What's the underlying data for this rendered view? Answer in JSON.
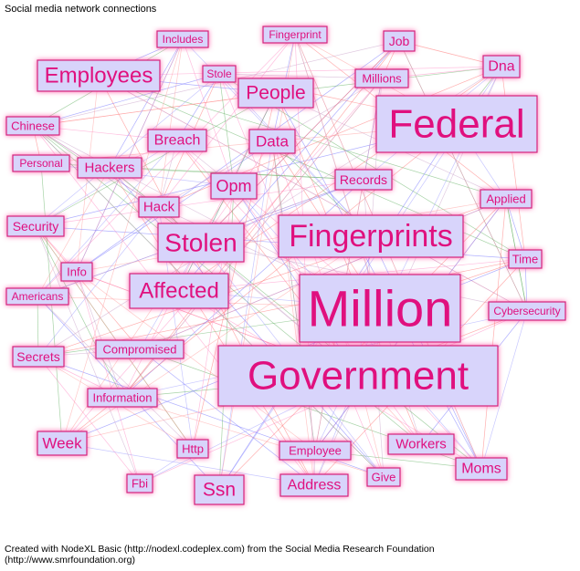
{
  "title": "Social media network connections",
  "footer": "Created with NodeXL Basic (http://nodexl.codeplex.com) from the Social Media Research Foundation (http://www.smrfoundation.org)",
  "nodes": [
    {
      "label": "Includes"
    },
    {
      "label": "Fingerprint"
    },
    {
      "label": "Job"
    },
    {
      "label": "Dna"
    },
    {
      "label": "Employees"
    },
    {
      "label": "Stole"
    },
    {
      "label": "Millions"
    },
    {
      "label": "People"
    },
    {
      "label": "Federal"
    },
    {
      "label": "Chinese"
    },
    {
      "label": "Breach"
    },
    {
      "label": "Data"
    },
    {
      "label": "Personal"
    },
    {
      "label": "Hackers"
    },
    {
      "label": "Records"
    },
    {
      "label": "Opm"
    },
    {
      "label": "Applied"
    },
    {
      "label": "Hack"
    },
    {
      "label": "Security"
    },
    {
      "label": "Stolen"
    },
    {
      "label": "Fingerprints"
    },
    {
      "label": "Time"
    },
    {
      "label": "Info"
    },
    {
      "label": "Americans"
    },
    {
      "label": "Affected"
    },
    {
      "label": "Million"
    },
    {
      "label": "Cybersecurity"
    },
    {
      "label": "Compromised"
    },
    {
      "label": "Secrets"
    },
    {
      "label": "Government"
    },
    {
      "label": "Information"
    },
    {
      "label": "Week"
    },
    {
      "label": "Workers"
    },
    {
      "label": "Http"
    },
    {
      "label": "Employee"
    },
    {
      "label": "Moms"
    },
    {
      "label": "Fbi"
    },
    {
      "label": "Ssn"
    },
    {
      "label": "Address"
    },
    {
      "label": "Give"
    }
  ]
}
